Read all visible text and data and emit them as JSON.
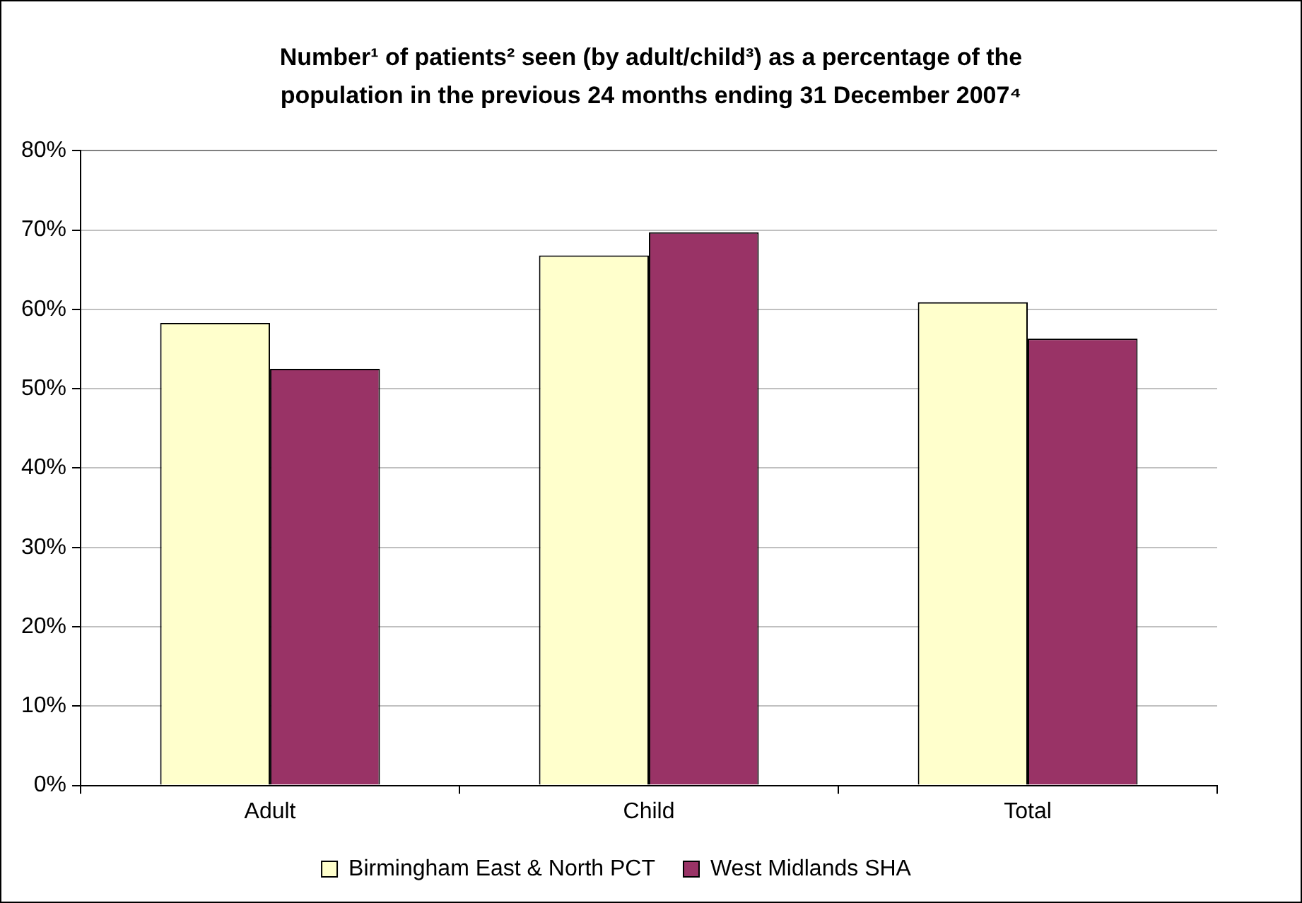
{
  "chart_data": {
    "type": "bar",
    "title": "Number¹ of patients² seen (by adult/child³) as a percentage of the population in the previous 24 months ending 31 December 2007⁴",
    "categories": [
      "Adult",
      "Child",
      "Total"
    ],
    "series": [
      {
        "name": "Birmingham East & North PCT",
        "color": "#ffffcc",
        "values": [
          58.3,
          66.8,
          60.9
        ]
      },
      {
        "name": "West Midlands SHA",
        "color": "#993366",
        "values": [
          52.5,
          69.7,
          56.3
        ]
      }
    ],
    "ylim": [
      0,
      80
    ],
    "yticks": [
      {
        "value": 0,
        "label": "0%"
      },
      {
        "value": 10,
        "label": "10%"
      },
      {
        "value": 20,
        "label": "20%"
      },
      {
        "value": 30,
        "label": "30%"
      },
      {
        "value": 40,
        "label": "40%"
      },
      {
        "value": 50,
        "label": "50%"
      },
      {
        "value": 60,
        "label": "60%"
      },
      {
        "value": 70,
        "label": "70%"
      },
      {
        "value": 80,
        "label": "80%"
      }
    ],
    "grid": "y",
    "legend": "bottom"
  }
}
